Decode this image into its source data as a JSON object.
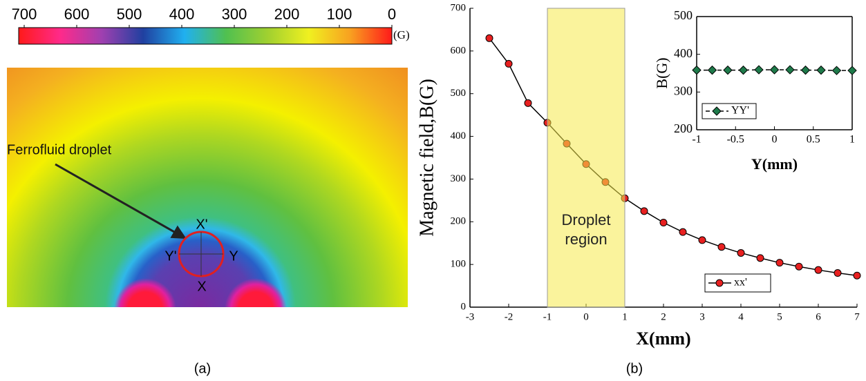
{
  "chart_data": [
    {
      "type": "line",
      "xlabel": "X(mm)",
      "ylabel": "Magnetic field,B(G)",
      "x": [
        -2.5,
        -2,
        -1.5,
        -1,
        -0.5,
        0,
        0.5,
        1,
        1.5,
        2,
        2.5,
        3,
        3.5,
        4,
        4.5,
        5,
        5.5,
        6,
        6.5,
        7
      ],
      "series": [
        {
          "name": "xx'",
          "color": "#e82020",
          "marker": "circle",
          "line_style": "solid",
          "values": [
            630,
            570,
            478,
            432,
            383,
            335,
            293,
            255,
            225,
            198,
            176,
            157,
            141,
            127,
            115,
            104,
            95,
            87,
            80,
            74
          ]
        }
      ],
      "xlim": [
        -3,
        7
      ],
      "xticks": [
        -3,
        -2,
        -1,
        0,
        1,
        2,
        3,
        4,
        5,
        6,
        7
      ],
      "ylim": [
        0,
        700
      ],
      "yticks": [
        0,
        100,
        200,
        300,
        400,
        500,
        600,
        700
      ],
      "legend": "lower right",
      "region": {
        "span": [
          -1,
          1
        ],
        "label": [
          "Droplet",
          "region"
        ],
        "color": "#f5e94a"
      }
    },
    {
      "type": "line",
      "xlabel": "Y(mm)",
      "ylabel": "B(G)",
      "x": [
        -1,
        -0.8,
        -0.6,
        -0.4,
        -0.2,
        0,
        0.2,
        0.4,
        0.6,
        0.8,
        1
      ],
      "series": [
        {
          "name": "YY'",
          "color": "#1e7a4a",
          "marker": "diamond",
          "line_style": "dashed",
          "values": [
            358,
            358,
            358,
            358,
            359,
            359,
            359,
            358,
            358,
            357,
            357
          ]
        }
      ],
      "xlim": [
        -1,
        1
      ],
      "xticks": [
        -1,
        -0.5,
        0,
        0.5,
        1
      ],
      "ylim": [
        200,
        500
      ],
      "yticks": [
        200,
        300,
        400,
        500
      ],
      "legend": "center left"
    },
    {
      "type": "colorbar",
      "unit": "(G)",
      "xlim": [
        700,
        0
      ],
      "xticks": [
        700,
        600,
        500,
        400,
        300,
        200,
        100,
        0
      ],
      "colors": [
        "#ff1a1a",
        "#ff2a8a",
        "#a040b0",
        "#2040a0",
        "#20b0f0",
        "#50c050",
        "#a0d030",
        "#f0f020",
        "#f8a020",
        "#ff1a1a"
      ]
    }
  ],
  "panel_a": {
    "annotation": "Ferrofluid droplet",
    "points": [
      "X'",
      "Y'",
      "Y",
      "X"
    ],
    "label": "(a)"
  },
  "panel_b": {
    "label": "(b)"
  }
}
